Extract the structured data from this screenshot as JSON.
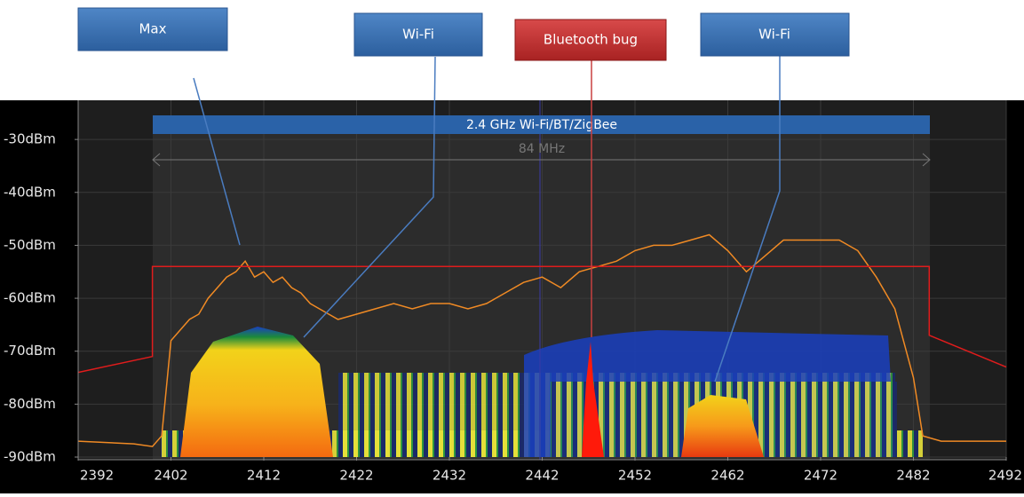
{
  "chart_data": {
    "type": "line",
    "band_label": "2.4 GHz Wi-Fi/BT/ZigBee",
    "span_label": "84 MHz",
    "callouts": [
      "Max",
      "Wi-Fi",
      "Bluetooth bug",
      "Wi-Fi"
    ],
    "xlim": [
      2392,
      2492
    ],
    "xticks": [
      2392,
      2402,
      2412,
      2422,
      2432,
      2442,
      2452,
      2462,
      2472,
      2482,
      2492
    ],
    "ylim": [
      -90,
      -22.6
    ],
    "yticks": [
      {
        "value": -30,
        "label": "-30dBm"
      },
      {
        "value": -40,
        "label": "-40dBm"
      },
      {
        "value": -50,
        "label": "-50dBm"
      },
      {
        "value": -60,
        "label": "-60dBm"
      },
      {
        "value": -70,
        "label": "-70dBm"
      },
      {
        "value": -80,
        "label": "-80dBm"
      },
      {
        "value": -90,
        "label": "-90dBm"
      }
    ],
    "grid": true,
    "series": [
      {
        "color": "#f08a24",
        "x": [
          2392,
          2398,
          2400,
          2401,
          2402,
          2403,
          2404,
          2405,
          2406,
          2407,
          2408,
          2409,
          2410,
          2411,
          2412,
          2413,
          2414,
          2415,
          2416,
          2417,
          2418,
          2419,
          2420,
          2422,
          2424,
          2426,
          2428,
          2430,
          2432,
          2434,
          2436,
          2438,
          2440,
          2442,
          2444,
          2446,
          2448,
          2450,
          2452,
          2454,
          2456,
          2458,
          2460,
          2462,
          2464,
          2466,
          2468,
          2470,
          2472,
          2474,
          2476,
          2478,
          2480,
          2482,
          2483,
          2485,
          2492
        ],
        "values": [
          -87,
          -87.5,
          -88,
          -86,
          -68,
          -66,
          -64,
          -63,
          -60,
          -58,
          -56,
          -55,
          -53,
          -56,
          -55,
          -57,
          -56,
          -58,
          -59,
          -61,
          -62,
          -63,
          -64,
          -63,
          -62,
          -61,
          -62,
          -61,
          -61,
          -62,
          -61,
          -59,
          -57,
          -56,
          -58,
          -55,
          -54,
          -53,
          -51,
          -50,
          -50,
          -49,
          -48,
          -51,
          -55,
          -52,
          -49,
          -49,
          -49,
          -49,
          -51,
          -56,
          -62,
          -75,
          -86,
          -87,
          -87
        ]
      },
      {
        "color": "#e01c1c",
        "x": [
          2392,
          2400,
          2400,
          2483.7,
          2483.7,
          2492
        ],
        "values": [
          -74,
          -71,
          -54,
          -54,
          -67,
          -73
        ]
      }
    ]
  }
}
